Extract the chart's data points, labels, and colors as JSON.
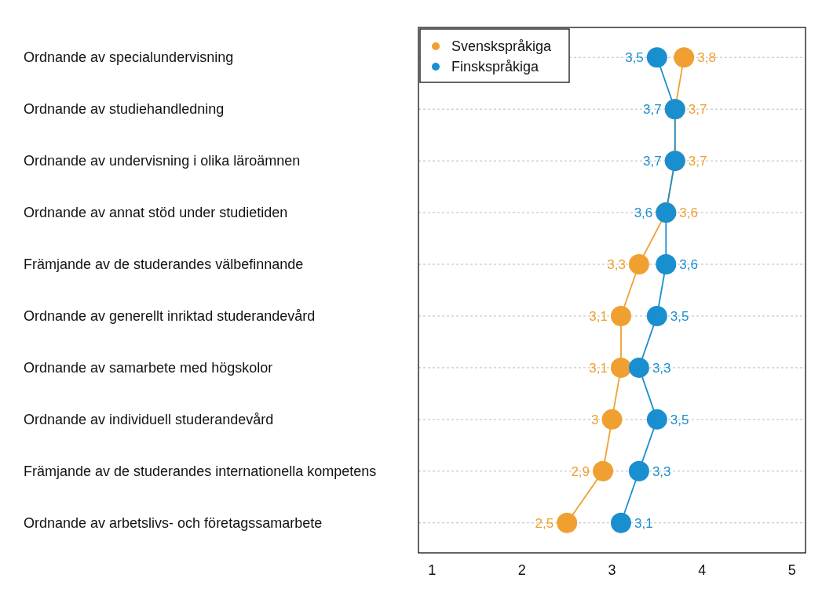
{
  "chart_data": {
    "type": "line",
    "orientation": "horizontal",
    "categories": [
      "Ordnande av specialundervisning",
      "Ordnande av studiehandledning",
      "Ordnande av undervisning i olika läroämnen",
      "Ordnande av annat stöd under studietiden",
      "Främjande av de studerandes välbefinnande",
      "Ordnande av generellt inriktad studerandevård",
      "Ordnande av samarbete med högskolor",
      "Ordnande av individuell studerandevård",
      "Främjande av de studerandes internationella kompetens",
      "Ordnande av arbetslivs- och företagssamarbete"
    ],
    "series": [
      {
        "name": "Svenskspråkiga",
        "color": "#f0a030",
        "values": [
          3.8,
          3.7,
          3.7,
          3.6,
          3.3,
          3.1,
          3.1,
          3.0,
          2.9,
          2.5
        ],
        "value_labels": [
          "3,8",
          "3,7",
          "3,7",
          "3,6",
          "3,3",
          "3,1",
          "3,1",
          "3",
          "2,9",
          "2,5"
        ]
      },
      {
        "name": "Finskspråkiga",
        "color": "#1a8fd0",
        "values": [
          3.5,
          3.7,
          3.7,
          3.6,
          3.6,
          3.5,
          3.3,
          3.5,
          3.3,
          3.1
        ],
        "value_labels": [
          "3,5",
          "3,7",
          "3,7",
          "3,6",
          "3,6",
          "3,5",
          "3,3",
          "3,5",
          "3,3",
          "3,1"
        ]
      }
    ],
    "xlim": [
      0.85,
      5.15
    ],
    "xticks": [
      1,
      2,
      3,
      4,
      5
    ],
    "grid": "y",
    "legend": "top left",
    "marker": "circle",
    "line_style": "solid"
  }
}
